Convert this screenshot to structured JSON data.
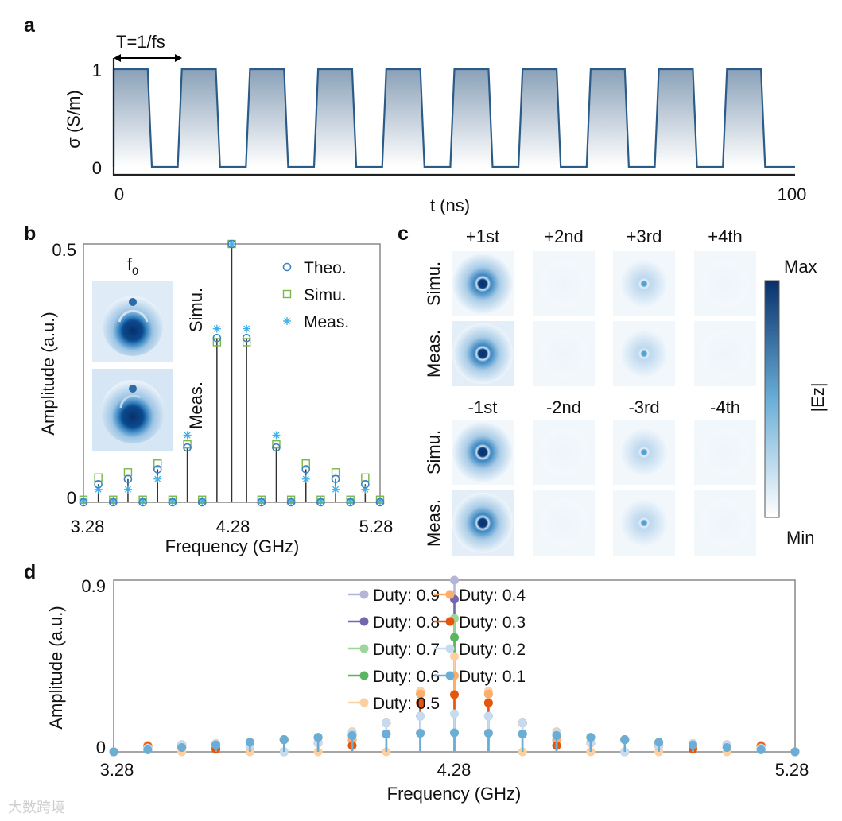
{
  "watermark": "大数跨境",
  "chart_data": [
    {
      "panel": "a",
      "type": "line",
      "title": "",
      "xlabel": "t (ns)",
      "ylabel": "σ (S/m)",
      "xlim": [
        0,
        100
      ],
      "ylim": [
        0,
        1
      ],
      "xticks": [
        "0",
        "100"
      ],
      "yticks": [
        "0",
        "1"
      ],
      "annotation": "T=1/fs",
      "period_ns": 10,
      "duty": 0.5,
      "levels": [
        0,
        1
      ],
      "num_periods": 10,
      "line_color": "#2b5b88"
    },
    {
      "panel": "b",
      "type": "scatter",
      "xlabel": "Frequency (GHz)",
      "ylabel": "Amplitude (a.u.)",
      "xlim": [
        3.28,
        5.28
      ],
      "ylim": [
        0,
        0.5
      ],
      "xticks": [
        "3.28",
        "4.28",
        "5.28"
      ],
      "yticks": [
        "0",
        "0.5"
      ],
      "legend_position": "top-right",
      "x": [
        3.28,
        3.38,
        3.48,
        3.58,
        3.68,
        3.78,
        3.88,
        3.98,
        4.08,
        4.18,
        4.28,
        4.38,
        4.48,
        4.58,
        4.68,
        4.78,
        4.88,
        4.98,
        5.08,
        5.18,
        5.28
      ],
      "series": [
        {
          "name": "Theo.",
          "marker": "circle",
          "color": "#3d80c4",
          "values": [
            0,
            0.035,
            0,
            0.045,
            0,
            0.064,
            0,
            0.106,
            0,
            0.318,
            0.5,
            0.318,
            0,
            0.106,
            0,
            0.064,
            0,
            0.045,
            0,
            0.035,
            0
          ]
        },
        {
          "name": "Simu.",
          "marker": "square",
          "color": "#7ab648",
          "values": [
            0.005,
            0.048,
            0.005,
            0.058,
            0.005,
            0.075,
            0.005,
            0.112,
            0.005,
            0.31,
            0.5,
            0.31,
            0.005,
            0.112,
            0.005,
            0.075,
            0.005,
            0.058,
            0.005,
            0.048,
            0.005
          ]
        },
        {
          "name": "Meas.",
          "marker": "asterisk",
          "color": "#3fb1e8",
          "values": [
            0.003,
            0.025,
            0.003,
            0.025,
            0.003,
            0.045,
            0.003,
            0.13,
            0.003,
            0.336,
            0.5,
            0.336,
            0.003,
            0.13,
            0.003,
            0.045,
            0.003,
            0.025,
            0.003,
            0.025,
            0.003
          ]
        }
      ],
      "inset": {
        "title": "f",
        "subscript": "0",
        "rows": [
          "Simu.",
          "Meas."
        ]
      }
    },
    {
      "panel": "c",
      "type": "heatmap",
      "columns_top": [
        "+1st",
        "+2nd",
        "+3rd",
        "+4th"
      ],
      "columns_bottom": [
        "-1st",
        "-2nd",
        "-3rd",
        "-4th"
      ],
      "rows": [
        "Simu.",
        "Meas."
      ],
      "relative_intensity": {
        "top": [
          [
            1,
            0.02,
            0.4,
            0.02
          ],
          [
            1,
            0.03,
            0.38,
            0.03
          ]
        ],
        "bottom": [
          [
            1,
            0.02,
            0.4,
            0.02
          ],
          [
            1,
            0.03,
            0.38,
            0.03
          ]
        ]
      },
      "colorbar": {
        "label": "|Ez|",
        "max": "Max",
        "min": "Min",
        "colors": [
          "#ffffff",
          "#6aaed6",
          "#08306b"
        ]
      }
    },
    {
      "panel": "d",
      "type": "line",
      "xlabel": "Frequency (GHz)",
      "ylabel": "Amplitude (a.u.)",
      "xlim": [
        3.28,
        5.28
      ],
      "ylim": [
        0,
        0.9
      ],
      "xticks": [
        "3.28",
        "4.28",
        "5.28"
      ],
      "yticks": [
        "0",
        "0.9"
      ],
      "legend_position": "top-right",
      "x": [
        3.28,
        3.38,
        3.48,
        3.58,
        3.68,
        3.78,
        3.88,
        3.98,
        4.08,
        4.18,
        4.28,
        4.38,
        4.48,
        4.58,
        4.68,
        4.78,
        4.88,
        4.98,
        5.08,
        5.18,
        5.28
      ],
      "series": [
        {
          "name": "Duty: 0.9",
          "color": "#b5b5d9",
          "values": [
            0,
            0.011,
            0.023,
            0.037,
            0.05,
            0.064,
            0.076,
            0.086,
            0.094,
            0.098,
            0.9,
            0.098,
            0.094,
            0.086,
            0.076,
            0.064,
            0.05,
            0.037,
            0.023,
            0.011,
            0
          ]
        },
        {
          "name": "Duty: 0.8",
          "color": "#7566b0",
          "values": [
            0,
            0.021,
            0.038,
            0.043,
            0.031,
            0,
            0.047,
            0.101,
            0.151,
            0.187,
            0.8,
            0.187,
            0.151,
            0.101,
            0.047,
            0,
            0.031,
            0.043,
            0.038,
            0.021,
            0
          ]
        },
        {
          "name": "Duty: 0.7",
          "color": "#9dd69b",
          "values": [
            0,
            0.029,
            0.038,
            0.014,
            0.031,
            0.064,
            0.047,
            0.033,
            0.151,
            0.257,
            0.7,
            0.257,
            0.151,
            0.033,
            0.047,
            0.064,
            0.031,
            0.014,
            0.038,
            0.029,
            0
          ]
        },
        {
          "name": "Duty: 0.6",
          "color": "#5bb561",
          "values": [
            0,
            0.034,
            0.023,
            0.027,
            0.05,
            0,
            0.076,
            0.062,
            0.094,
            0.303,
            0.6,
            0.303,
            0.094,
            0.062,
            0.076,
            0,
            0.05,
            0.027,
            0.023,
            0.034,
            0
          ]
        },
        {
          "name": "Duty: 0.5",
          "color": "#fdd0a2",
          "values": [
            0,
            0.035,
            0,
            0.045,
            0,
            0.064,
            0,
            0.106,
            0,
            0.318,
            0.5,
            0.318,
            0,
            0.106,
            0,
            0.064,
            0,
            0.045,
            0,
            0.035,
            0
          ]
        },
        {
          "name": "Duty: 0.4",
          "color": "#fdad6a",
          "values": [
            0,
            0.034,
            0.023,
            0.027,
            0.05,
            0,
            0.076,
            0.062,
            0.094,
            0.303,
            0.4,
            0.303,
            0.094,
            0.062,
            0.076,
            0,
            0.05,
            0.027,
            0.023,
            0.034,
            0
          ]
        },
        {
          "name": "Duty: 0.3",
          "color": "#e5550e",
          "values": [
            0,
            0.029,
            0.038,
            0.014,
            0.031,
            0.064,
            0.047,
            0.033,
            0.151,
            0.257,
            0.3,
            0.257,
            0.151,
            0.033,
            0.047,
            0.064,
            0.031,
            0.014,
            0.038,
            0.029,
            0
          ]
        },
        {
          "name": "Duty: 0.2",
          "color": "#c6dbef",
          "values": [
            0,
            0.021,
            0.038,
            0.043,
            0.031,
            0,
            0.047,
            0.101,
            0.151,
            0.187,
            0.2,
            0.187,
            0.151,
            0.101,
            0.047,
            0,
            0.031,
            0.043,
            0.038,
            0.021,
            0
          ]
        },
        {
          "name": "Duty: 0.1",
          "color": "#6aaed6",
          "values": [
            0,
            0.011,
            0.023,
            0.037,
            0.05,
            0.064,
            0.076,
            0.086,
            0.094,
            0.098,
            0.1,
            0.098,
            0.094,
            0.086,
            0.076,
            0.064,
            0.05,
            0.037,
            0.023,
            0.011,
            0
          ]
        }
      ]
    }
  ]
}
